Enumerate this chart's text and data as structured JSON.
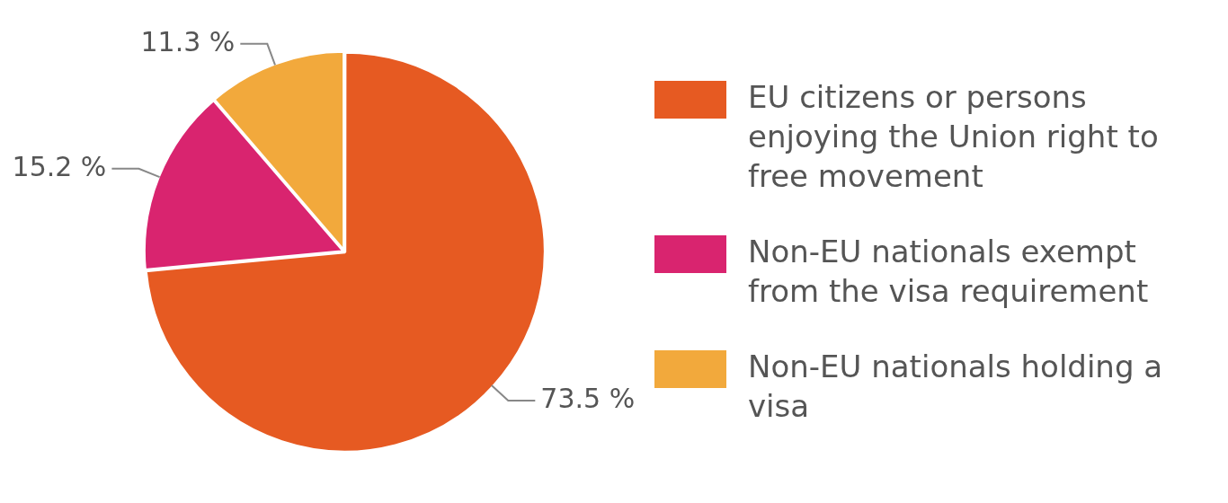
{
  "chart_data": {
    "type": "pie",
    "categories": [
      "EU citizens or persons enjoying the Union right to free movement",
      "Non-EU nationals exempt from the visa requirement",
      "Non-EU nationals holding a visa"
    ],
    "values": [
      73.5,
      15.2,
      11.3
    ],
    "colors": [
      "#e65a22",
      "#d9246f",
      "#f2a93c"
    ],
    "value_labels": [
      "73.5 %",
      "15.2 %",
      "11.3 %"
    ],
    "legend": "right"
  }
}
